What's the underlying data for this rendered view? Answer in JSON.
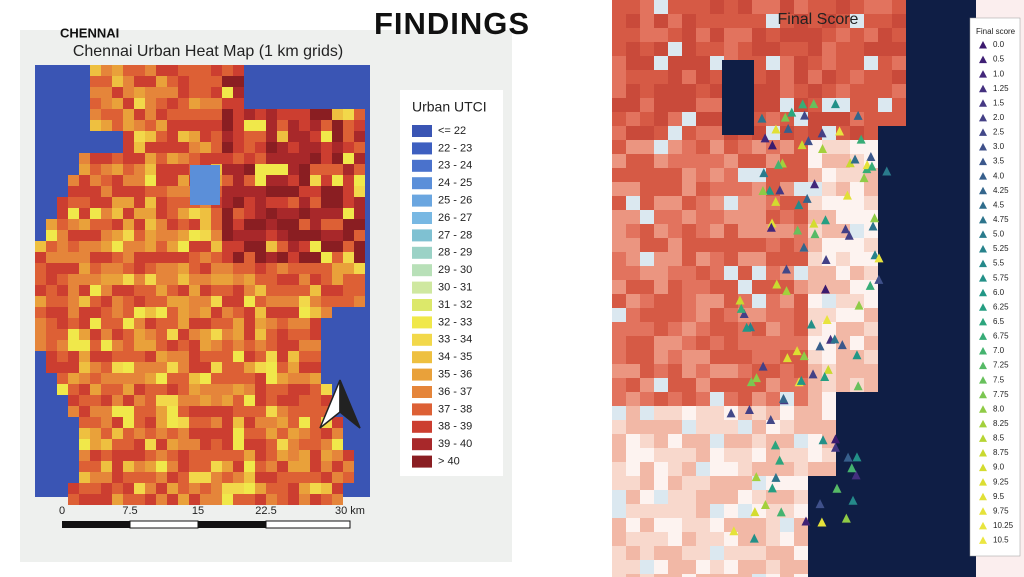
{
  "header": {
    "title": "FINDINGS"
  },
  "left_map": {
    "label": "CHENNAI",
    "title": "Chennai Urban Heat Map (1 km grids)",
    "legend": {
      "title": "Urban UTCI",
      "items": [
        {
          "label": "<= 22",
          "color": "#3a55b4"
        },
        {
          "label": "22 - 23",
          "color": "#3d5fc0"
        },
        {
          "label": "23 - 24",
          "color": "#4a72cc"
        },
        {
          "label": "24 - 25",
          "color": "#5b8fd9"
        },
        {
          "label": "25 - 26",
          "color": "#6aa6e0"
        },
        {
          "label": "26 - 27",
          "color": "#78b8e3"
        },
        {
          "label": "27 - 28",
          "color": "#7fc1d2"
        },
        {
          "label": "28 - 29",
          "color": "#9bd2c6"
        },
        {
          "label": "29 - 30",
          "color": "#b8e0b8"
        },
        {
          "label": "30 - 31",
          "color": "#cfe8a0"
        },
        {
          "label": "31 - 32",
          "color": "#dce86a"
        },
        {
          "label": "32 - 33",
          "color": "#f0e84a"
        },
        {
          "label": "33 - 34",
          "color": "#f2d84a"
        },
        {
          "label": "34 - 35",
          "color": "#eec040"
        },
        {
          "label": "35 - 36",
          "color": "#e9a13a"
        },
        {
          "label": "36 - 37",
          "color": "#e5853a"
        },
        {
          "label": "37 - 38",
          "color": "#dd6035"
        },
        {
          "label": "38 - 39",
          "color": "#cc3e30"
        },
        {
          "label": "39 - 40",
          "color": "#a8282a"
        },
        {
          "label": "> 40",
          "color": "#8a1e22"
        }
      ]
    },
    "scale_labels": [
      "0",
      "7.5",
      "15",
      "22.5",
      "30 km"
    ]
  },
  "right_map": {
    "title": "Final Score",
    "legend": {
      "title": "Final score",
      "items": [
        {
          "label": "0.0",
          "color": "#3b1a6e"
        },
        {
          "label": "0.5",
          "color": "#3f1f74"
        },
        {
          "label": "1.0",
          "color": "#42277a"
        },
        {
          "label": "1.25",
          "color": "#44307f"
        },
        {
          "label": "1.5",
          "color": "#453883"
        },
        {
          "label": "2.0",
          "color": "#444086"
        },
        {
          "label": "2.5",
          "color": "#424888"
        },
        {
          "label": "3.0",
          "color": "#3f508a"
        },
        {
          "label": "3.5",
          "color": "#3b578b"
        },
        {
          "label": "4.0",
          "color": "#375f8c"
        },
        {
          "label": "4.25",
          "color": "#34668c"
        },
        {
          "label": "4.5",
          "color": "#306d8c"
        },
        {
          "label": "4.75",
          "color": "#2d748c"
        },
        {
          "label": "5.0",
          "color": "#2a7b8c"
        },
        {
          "label": "5.25",
          "color": "#27828b"
        },
        {
          "label": "5.5",
          "color": "#25898a"
        },
        {
          "label": "5.75",
          "color": "#239088"
        },
        {
          "label": "6.0",
          "color": "#229786"
        },
        {
          "label": "6.25",
          "color": "#259e82"
        },
        {
          "label": "6.5",
          "color": "#2ca57d"
        },
        {
          "label": "6.75",
          "color": "#37ac77"
        },
        {
          "label": "7.0",
          "color": "#45b36f"
        },
        {
          "label": "7.25",
          "color": "#56ba66"
        },
        {
          "label": "7.5",
          "color": "#68c05c"
        },
        {
          "label": "7.75",
          "color": "#7bc651"
        },
        {
          "label": "8.0",
          "color": "#8fcb46"
        },
        {
          "label": "8.25",
          "color": "#a3d03c"
        },
        {
          "label": "8.5",
          "color": "#b7d534"
        },
        {
          "label": "8.75",
          "color": "#c9d92f"
        },
        {
          "label": "9.0",
          "color": "#d4dc2f"
        },
        {
          "label": "9.25",
          "color": "#dcde32"
        },
        {
          "label": "9.5",
          "color": "#e1e036"
        },
        {
          "label": "9.75",
          "color": "#e5e23a"
        },
        {
          "label": "10.25",
          "color": "#e8e43e"
        },
        {
          "label": "10.5",
          "color": "#ebe642"
        }
      ]
    }
  }
}
